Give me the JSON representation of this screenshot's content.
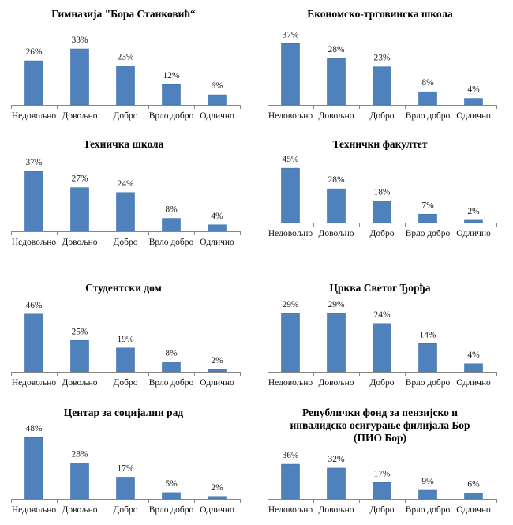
{
  "colors": {
    "bar": "#4F81BD",
    "bar_edge": "#3F70AC",
    "axis": "#868686"
  },
  "chart_data": [
    {
      "type": "bar",
      "title": [
        "Гимназија \"Бора Станковић“"
      ],
      "categories": [
        "Недовољно",
        "Довољно",
        "Добро",
        "Врло добро",
        "Одлично"
      ],
      "values": [
        26,
        33,
        23,
        12,
        6
      ],
      "labels": [
        "26%",
        "33%",
        "23%",
        "12%",
        "6%"
      ],
      "xlabel": "",
      "ylabel": "",
      "ylim": [
        0,
        40
      ],
      "grid": false,
      "legend": "none"
    },
    {
      "type": "bar",
      "title": [
        "Економско-трговинска школа"
      ],
      "categories": [
        "Недовољно",
        "Довољно",
        "Добро",
        "Врло добро",
        "Одлично"
      ],
      "values": [
        37,
        28,
        23,
        8,
        4
      ],
      "labels": [
        "37%",
        "28%",
        "23%",
        "8%",
        "4%"
      ],
      "xlabel": "",
      "ylabel": "",
      "ylim": [
        0,
        40
      ],
      "grid": false,
      "legend": "none"
    },
    {
      "type": "bar",
      "title": [
        "Техничка школа"
      ],
      "categories": [
        "Недовољно",
        "Довољно",
        "Добро",
        "Врло добро",
        "Одлично"
      ],
      "values": [
        37,
        27,
        24,
        8,
        4
      ],
      "labels": [
        "37%",
        "27%",
        "24%",
        "8%",
        "4%"
      ],
      "xlabel": "",
      "ylabel": "",
      "ylim": [
        0,
        40
      ],
      "grid": false,
      "legend": "none"
    },
    {
      "type": "bar",
      "title": [
        "Технички факултет"
      ],
      "categories": [
        "Недовољно",
        "Довољно",
        "Добро",
        "Врло добро",
        "Одлично"
      ],
      "values": [
        45,
        28,
        18,
        7,
        2
      ],
      "labels": [
        "45%",
        "28%",
        "18%",
        "7%",
        "2%"
      ],
      "xlabel": "",
      "ylabel": "",
      "ylim": [
        0,
        50
      ],
      "grid": false,
      "legend": "none"
    },
    {
      "type": "bar",
      "title": [
        "Студентски дом"
      ],
      "categories": [
        "Недовољно",
        "Довољно",
        "Добро",
        "Врло добро",
        "Одлично"
      ],
      "values": [
        46,
        25,
        19,
        8,
        2
      ],
      "labels": [
        "46%",
        "25%",
        "19%",
        "8%",
        "2%"
      ],
      "xlabel": "",
      "ylabel": "",
      "ylim": [
        0,
        50
      ],
      "grid": false,
      "legend": "none"
    },
    {
      "type": "bar",
      "title": [
        "Црква Светог Ђорђа"
      ],
      "categories": [
        "Недовољно",
        "Довољно",
        "Добро",
        "Врло добро",
        "Одлично"
      ],
      "values": [
        29,
        29,
        24,
        14,
        4
      ],
      "labels": [
        "29%",
        "29%",
        "24%",
        "14%",
        "4%"
      ],
      "xlabel": "",
      "ylabel": "",
      "ylim": [
        0,
        30
      ],
      "grid": false,
      "legend": "none"
    },
    {
      "type": "bar",
      "title": [
        "Центар за социјални рад"
      ],
      "categories": [
        "Недовољно",
        "Довољно",
        "Добро",
        "Врло добро",
        "Одлично"
      ],
      "values": [
        48,
        28,
        17,
        5,
        2
      ],
      "labels": [
        "48%",
        "28%",
        "17%",
        "5%",
        "2%"
      ],
      "xlabel": "",
      "ylabel": "",
      "ylim": [
        0,
        50
      ],
      "grid": false,
      "legend": "none"
    },
    {
      "type": "bar",
      "title": [
        "Републички фонд за пензијско и",
        "инвалидско осигурање филијала Бор",
        "(ПИО Бор)"
      ],
      "categories": [
        "Недовољно",
        "Довољно",
        "Добро",
        "Врло добро",
        "Одлично"
      ],
      "values": [
        36,
        32,
        17,
        9,
        6
      ],
      "labels": [
        "36%",
        "32%",
        "17%",
        "9%",
        "6%"
      ],
      "xlabel": "",
      "ylabel": "",
      "ylim": [
        0,
        40
      ],
      "grid": false,
      "legend": "none"
    }
  ]
}
